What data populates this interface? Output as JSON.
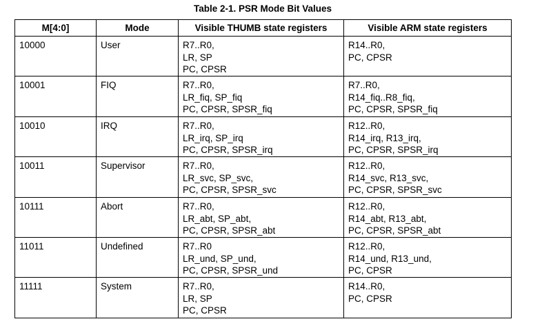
{
  "title": "Table 2-1. PSR Mode Bit Values",
  "table": {
    "header": [
      "M[4:0]",
      "Mode",
      "Visible THUMB state registers",
      "Visible ARM state registers"
    ],
    "rows": [
      [
        "10000",
        "User",
        [
          "R7..R0,",
          "LR, SP",
          "PC, CPSR"
        ],
        [
          "R14..R0,",
          "PC, CPSR"
        ]
      ],
      [
        "10001",
        "FIQ",
        [
          "R7..R0,",
          "LR_fiq, SP_fiq",
          "PC, CPSR, SPSR_fiq"
        ],
        [
          "R7..R0,",
          "R14_fiq..R8_fiq,",
          "PC, CPSR, SPSR_fiq"
        ]
      ],
      [
        "10010",
        "IRQ",
        [
          "R7..R0,",
          "LR_irq, SP_irq",
          "PC, CPSR, SPSR_irq"
        ],
        [
          "R12..R0,",
          "R14_irq, R13_irq,",
          "PC, CPSR, SPSR_irq"
        ]
      ],
      [
        "10011",
        "Supervisor",
        [
          "R7..R0,",
          "LR_svc, SP_svc,",
          "PC, CPSR, SPSR_svc"
        ],
        [
          "R12..R0,",
          "R14_svc, R13_svc,",
          "PC, CPSR, SPSR_svc"
        ]
      ],
      [
        "10111",
        "Abort",
        [
          "R7..R0,",
          "LR_abt, SP_abt,",
          "PC, CPSR, SPSR_abt"
        ],
        [
          "R12..R0,",
          "R14_abt, R13_abt,",
          "PC, CPSR, SPSR_abt"
        ]
      ],
      [
        "11011",
        "Undefined",
        [
          "R7..R0",
          "LR_und, SP_und,",
          "PC, CPSR, SPSR_und"
        ],
        [
          "R12..R0,",
          "R14_und, R13_und,",
          "PC, CPSR"
        ]
      ],
      [
        "11111",
        "System",
        [
          "R7..R0,",
          "LR, SP",
          "PC, CPSR"
        ],
        [
          "R14..R0,",
          "PC, CPSR"
        ]
      ]
    ]
  }
}
